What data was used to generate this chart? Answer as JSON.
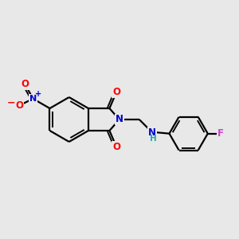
{
  "background_color": "#e8e8e8",
  "bond_color": "#000000",
  "bond_width": 1.6,
  "atom_colors": {
    "N": "#0000cc",
    "O": "#ff0000",
    "F": "#cc44cc",
    "H": "#22aaaa"
  },
  "figsize": [
    3.0,
    3.0
  ],
  "dpi": 100,
  "xlim": [
    0,
    10
  ],
  "ylim": [
    0,
    10
  ]
}
